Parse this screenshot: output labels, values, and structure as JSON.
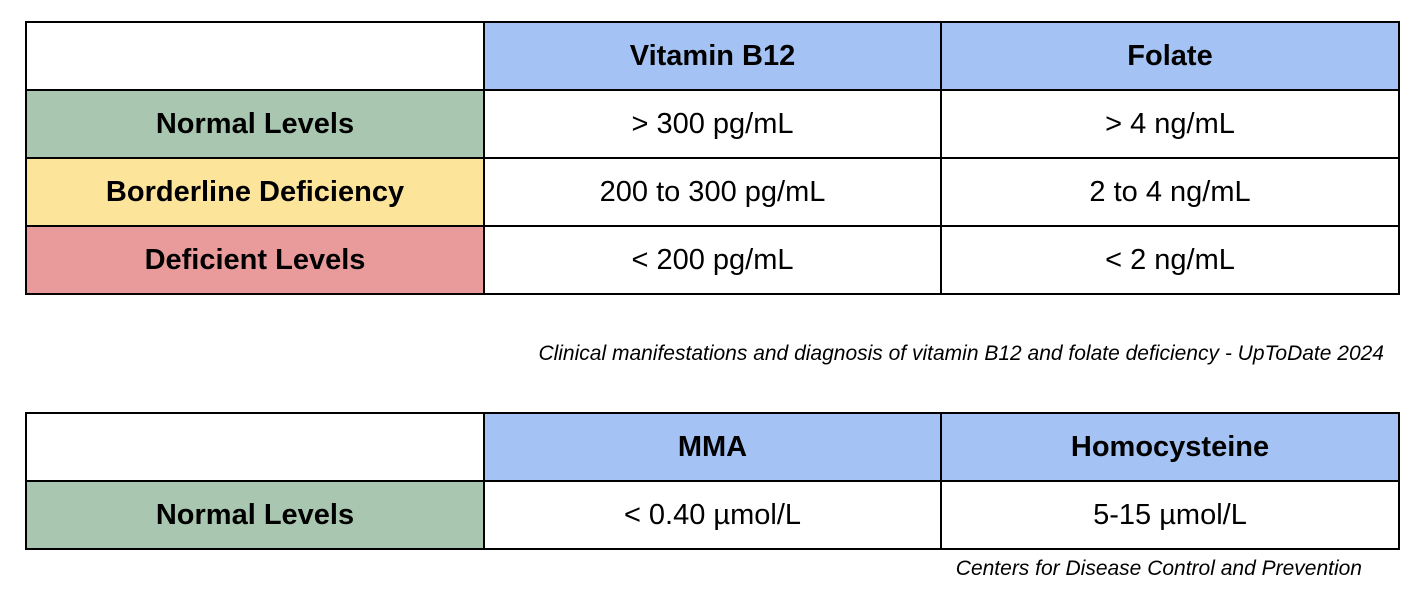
{
  "colors": {
    "header": "#a4c2f4",
    "normal": "#a9c7b0",
    "borderline": "#fde49b",
    "deficient": "#e99b9b"
  },
  "table1": {
    "columns": [
      "",
      "Vitamin B12",
      "Folate"
    ],
    "rows": [
      {
        "label": "Normal Levels",
        "color": "#a9c7b0",
        "b12": "> 300 pg/mL",
        "folate": "> 4 ng/mL"
      },
      {
        "label": "Borderline Deficiency",
        "color": "#fde49b",
        "b12": "200 to 300 pg/mL",
        "folate": "2 to 4 ng/mL"
      },
      {
        "label": "Deficient Levels",
        "color": "#e99b9b",
        "b12": "< 200 pg/mL",
        "folate": "< 2 ng/mL"
      }
    ],
    "source": "Clinical manifestations and diagnosis of vitamin B12 and folate deficiency - UpToDate 2024"
  },
  "table2": {
    "columns": [
      "",
      "MMA",
      "Homocysteine"
    ],
    "rows": [
      {
        "label": "Normal Levels",
        "color": "#a9c7b0",
        "mma": "< 0.40 µmol/L",
        "homocysteine": "5-15 µmol/L"
      }
    ],
    "source": "Centers for Disease Control and Prevention"
  }
}
